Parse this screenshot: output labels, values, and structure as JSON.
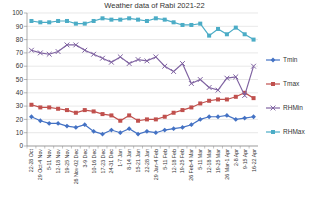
{
  "chart_data": {
    "type": "line",
    "title": "Weather data of Rabi 2021-22",
    "categories": [
      "22-28 Oct",
      "29 Oct-4 Nov",
      "5-11 Nov",
      "12-18 Nov",
      "19-25 Nov",
      "26 Nov-02 Dec",
      "3-9 Dec",
      "10-16 Dec",
      "17-23 Dec",
      "24-31 Dec",
      "1-7 Jan",
      "8-14 Jan",
      "15-21 Jan",
      "22-28 Jan",
      "29 Jan-4 Feb",
      "5-11 Feb",
      "12-18 Feb",
      "19-25 Feb",
      "26 Feb-4 Mar",
      "5-11 Mar",
      "12-18 Mar",
      "19-25 Mar",
      "26 Mar-1 Apr",
      "2-8 Apr",
      "9-15 Apr",
      "16-22 Apr"
    ],
    "series": [
      {
        "name": "Tmin",
        "color": "#4472c4",
        "marker": "diamond",
        "values": [
          22,
          19,
          17,
          17,
          15,
          14,
          16,
          11,
          9,
          12,
          10,
          13,
          9,
          11,
          10,
          12,
          13,
          14,
          16,
          20,
          22,
          22,
          23,
          20,
          21,
          22
        ]
      },
      {
        "name": "Tmax",
        "color": "#c0504d",
        "marker": "square",
        "values": [
          31,
          29,
          29,
          28,
          27,
          25,
          27,
          26,
          24,
          23,
          19,
          23,
          19,
          20,
          20,
          22,
          25,
          27,
          29,
          32,
          34,
          35,
          35,
          37,
          40,
          36
        ]
      },
      {
        "name": "RHMin",
        "color": "#8064a2",
        "marker": "x",
        "values": [
          72,
          70,
          69,
          71,
          76,
          76,
          72,
          69,
          66,
          63,
          67,
          62,
          65,
          64,
          67,
          60,
          56,
          62,
          47,
          50,
          44,
          42,
          51,
          52,
          38,
          60
        ]
      },
      {
        "name": "RHMax",
        "color": "#4bacc6",
        "marker": "square",
        "values": [
          94,
          93,
          93,
          94,
          94,
          92,
          92,
          94,
          96,
          95,
          95,
          96,
          95,
          94,
          96,
          95,
          93,
          91,
          91,
          92,
          83,
          88,
          84,
          89,
          84,
          80
        ]
      }
    ],
    "ylim": [
      0,
      100
    ],
    "yticks": [
      0,
      10,
      20,
      30,
      40,
      50,
      60,
      70,
      80,
      90,
      100
    ],
    "grid": true,
    "legend": "right"
  }
}
